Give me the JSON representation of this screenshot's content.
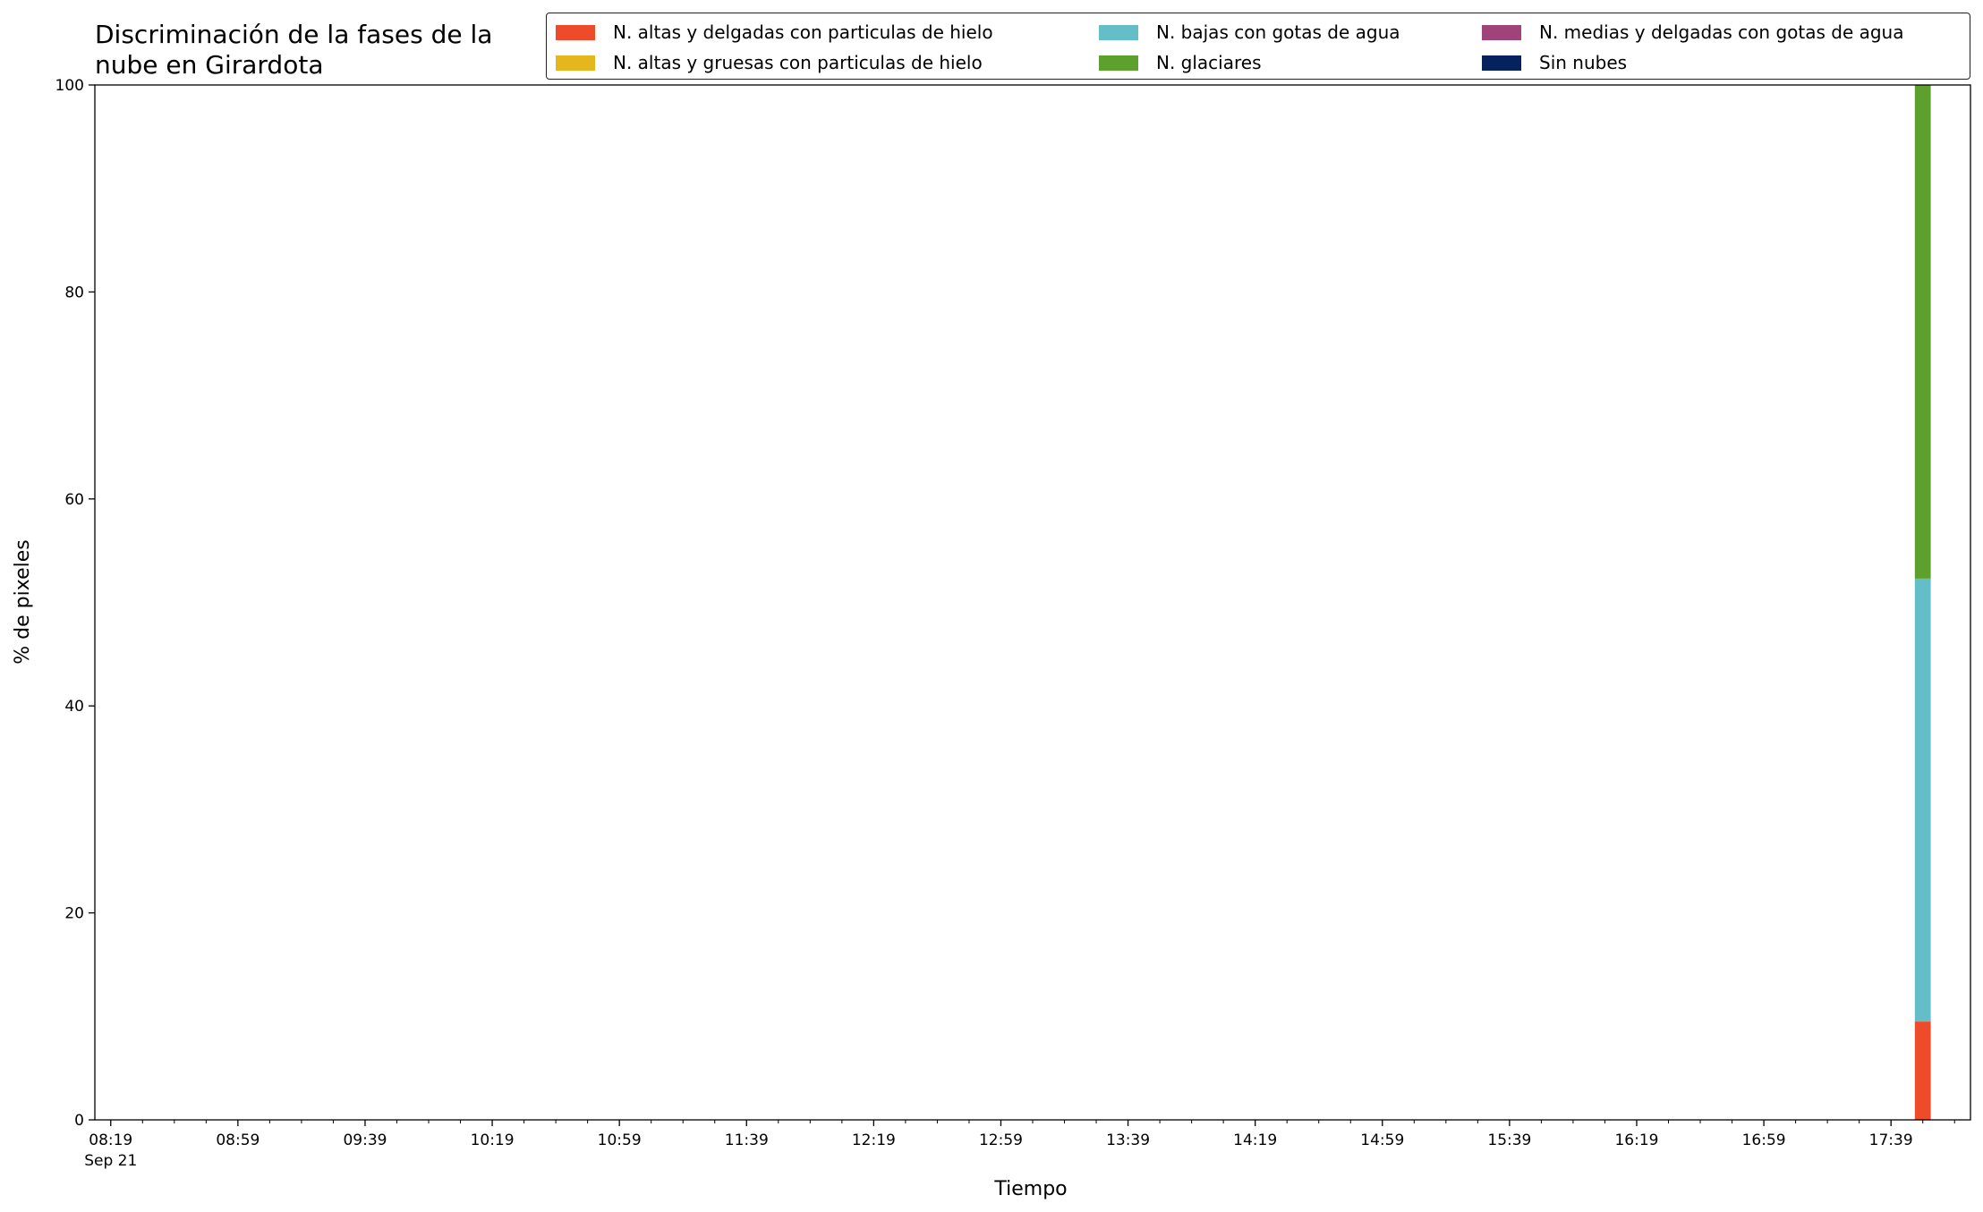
{
  "chart_data": {
    "type": "stacked_bar",
    "title": "Discriminación de la fases de la nube en Girardota",
    "x_label": "Tiempo",
    "y_label": "% de pixeles",
    "x": [
      "17:49"
    ],
    "x_date_label": "Sep 21",
    "series": [
      {
        "name": "N. altas y delgadas con particulas de hielo",
        "color": "#ee4b2b",
        "values": [
          9.5
        ]
      },
      {
        "name": "N. altas y gruesas con particulas de hielo",
        "color": "#e5b71e",
        "values": [
          0
        ]
      },
      {
        "name": "N. bajas con gotas de agua",
        "color": "#64bec8",
        "values": [
          42.8
        ]
      },
      {
        "name": "N. glaciares",
        "color": "#5ea02d",
        "values": [
          47.7
        ]
      },
      {
        "name": "N. medias y delgadas con gotas de agua",
        "color": "#a0437a",
        "values": [
          0
        ]
      },
      {
        "name": "Sin nubes",
        "color": "#05225e",
        "values": [
          0
        ]
      }
    ],
    "xlim": [
      "08:14",
      "18:04"
    ],
    "xticks": [
      "08:19",
      "08:59",
      "09:39",
      "10:19",
      "10:59",
      "11:39",
      "12:19",
      "12:59",
      "13:39",
      "14:19",
      "14:59",
      "15:39",
      "16:19",
      "16:59",
      "17:39"
    ],
    "xminorticks": [
      "08:29",
      "08:39",
      "08:49",
      "09:09",
      "09:19",
      "09:29",
      "09:49",
      "09:59",
      "10:09",
      "10:29",
      "10:39",
      "10:49",
      "11:09",
      "11:19",
      "11:29",
      "11:49",
      "11:59",
      "12:09",
      "12:29",
      "12:39",
      "12:49",
      "13:09",
      "13:19",
      "13:29",
      "13:49",
      "13:59",
      "14:09",
      "14:29",
      "14:39",
      "14:49",
      "15:09",
      "15:19",
      "15:29",
      "15:49",
      "15:59",
      "16:09",
      "16:29",
      "16:39",
      "16:49",
      "17:09",
      "17:19",
      "17:29",
      "17:49",
      "17:59"
    ],
    "ylim": [
      0,
      100
    ],
    "yticks": [
      0,
      20,
      40,
      60,
      80,
      100
    ],
    "grid": false,
    "legend_position": "upper right"
  }
}
